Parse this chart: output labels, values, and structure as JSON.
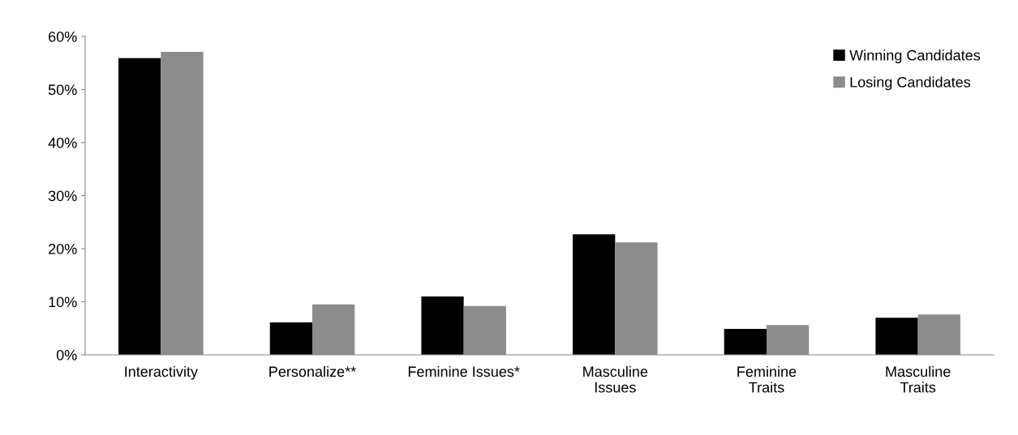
{
  "chart_data": {
    "type": "bar",
    "categories": [
      "Interactivity",
      "Personalize**",
      "Feminine Issues*",
      "Masculine\nIssues",
      "Feminine\nTraits",
      "Masculine\nTraits"
    ],
    "series": [
      {
        "name": "Winning Candidates",
        "color": "#000000",
        "values": [
          55.9,
          6.1,
          11.0,
          22.7,
          4.9,
          7.0
        ]
      },
      {
        "name": "Losing Candidates",
        "color": "#8c8c8c",
        "values": [
          57.1,
          9.5,
          9.2,
          21.2,
          5.6,
          7.6
        ]
      }
    ],
    "ylim": [
      0,
      60
    ],
    "yticks": [
      {
        "value": 0,
        "label": "0%"
      },
      {
        "value": 10,
        "label": "10%"
      },
      {
        "value": 20,
        "label": "20%"
      },
      {
        "value": 30,
        "label": "30%"
      },
      {
        "value": 40,
        "label": "40%"
      },
      {
        "value": 50,
        "label": "50%"
      },
      {
        "value": 60,
        "label": "60%"
      }
    ],
    "grid": false,
    "legend": "top right"
  }
}
